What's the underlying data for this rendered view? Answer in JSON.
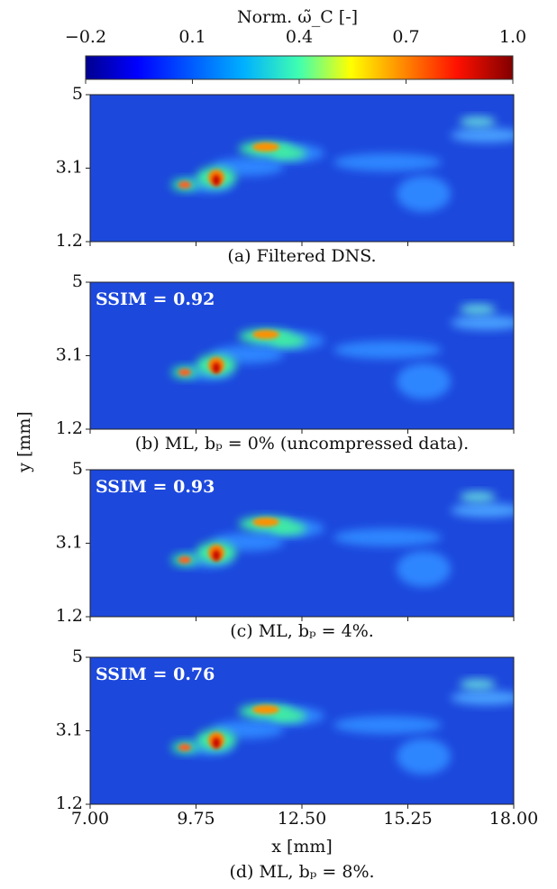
{
  "colorbar": {
    "label": "Norm. ω̃_C [-]",
    "clim": [
      -0.2,
      1.0
    ],
    "ticks": [
      {
        "value": -0.2,
        "label": "−0.2"
      },
      0.1,
      0.4,
      0.7,
      {
        "value": 1.0,
        "label": "1.0"
      }
    ]
  },
  "xlabel": "x [mm]",
  "ylabel": "y [mm]",
  "chart_data": [
    {
      "type": "heatmap",
      "caption": "(a) Filtered DNS.",
      "xlim": [
        7,
        18
      ],
      "ylim": [
        1.2,
        5
      ],
      "xticks": [
        {
          "value": 7,
          "label": "7.00"
        },
        9.75,
        {
          "value": 12.5,
          "label": "12.50"
        },
        15.25,
        {
          "value": 18,
          "label": "18.00"
        }
      ],
      "yticks": [
        5,
        3.1,
        1.2
      ]
    },
    {
      "type": "heatmap",
      "caption": "(b) ML, bₚ = 0% (uncompressed data).",
      "annotation": "SSIM = 0.92",
      "xlim": [
        7,
        18
      ],
      "ylim": [
        1.2,
        5
      ],
      "xticks": [
        {
          "value": 7,
          "label": "7.00"
        },
        9.75,
        {
          "value": 12.5,
          "label": "12.50"
        },
        15.25,
        {
          "value": 18,
          "label": "18.00"
        }
      ],
      "yticks": [
        5,
        3.1,
        1.2
      ]
    },
    {
      "type": "heatmap",
      "caption": "(c) ML, bₚ = 4%.",
      "annotation": "SSIM = 0.93",
      "xlim": [
        7,
        18
      ],
      "ylim": [
        1.2,
        5
      ],
      "xticks": [
        {
          "value": 7,
          "label": "7.00"
        },
        9.75,
        {
          "value": 12.5,
          "label": "12.50"
        },
        15.25,
        {
          "value": 18,
          "label": "18.00"
        }
      ],
      "yticks": [
        5,
        3.1,
        1.2
      ]
    },
    {
      "type": "heatmap",
      "caption": "(d) ML, bₚ = 8%.",
      "annotation": "SSIM = 0.76",
      "xlim": [
        7,
        18
      ],
      "ylim": [
        1.2,
        5
      ],
      "xticks": [
        {
          "value": 7,
          "label": "7.00"
        },
        9.75,
        {
          "value": 12.5,
          "label": "12.50"
        },
        15.25,
        {
          "value": 18,
          "label": "18.00"
        }
      ],
      "yticks": [
        5,
        3.1,
        1.2
      ]
    }
  ]
}
